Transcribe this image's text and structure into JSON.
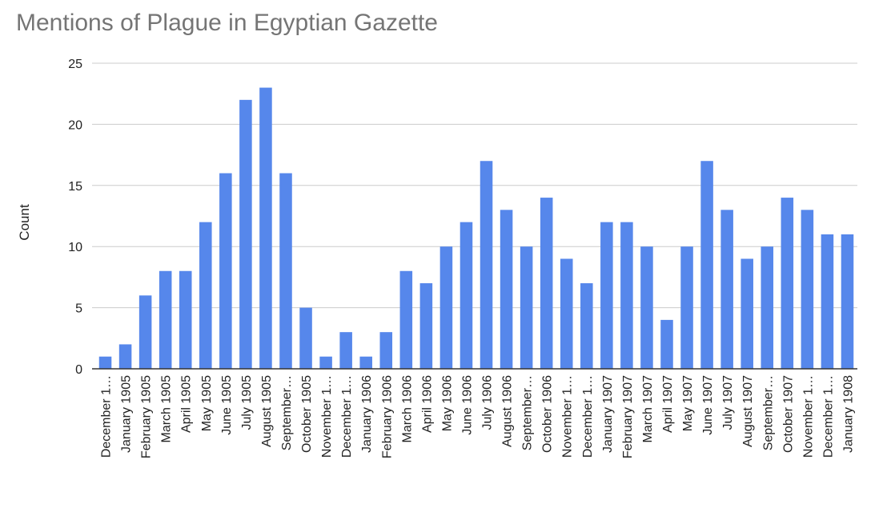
{
  "chart_data": {
    "type": "bar",
    "title": "Mentions of Plague in Egyptian Gazette",
    "xlabel": "",
    "ylabel": "Count",
    "ylim": [
      0,
      25
    ],
    "yticks": [
      0,
      5,
      10,
      15,
      20,
      25
    ],
    "grid": true,
    "legend": "none",
    "bar_color": "#5687eb",
    "categories": [
      "December 1…",
      "January 1905",
      "February 1905",
      "March 1905",
      "April 1905",
      "May 1905",
      "June 1905",
      "July 1905",
      "August 1905",
      "September…",
      "October 1905",
      "November 1…",
      "December 1…",
      "January 1906",
      "February 1906",
      "March 1906",
      "April 1906",
      "May 1906",
      "June 1906",
      "July 1906",
      "August 1906",
      "September…",
      "October 1906",
      "November 1…",
      "December 1…",
      "January 1907",
      "February 1907",
      "March 1907",
      "April 1907",
      "May 1907",
      "June 1907",
      "July 1907",
      "August 1907",
      "September…",
      "October 1907",
      "November 1…",
      "December 1…",
      "January 1908"
    ],
    "values": [
      1,
      2,
      6,
      8,
      8,
      12,
      16,
      22,
      23,
      16,
      5,
      1,
      3,
      1,
      3,
      8,
      7,
      10,
      12,
      17,
      13,
      10,
      14,
      9,
      7,
      12,
      12,
      10,
      4,
      10,
      17,
      13,
      9,
      10,
      14,
      13,
      11,
      11
    ]
  }
}
